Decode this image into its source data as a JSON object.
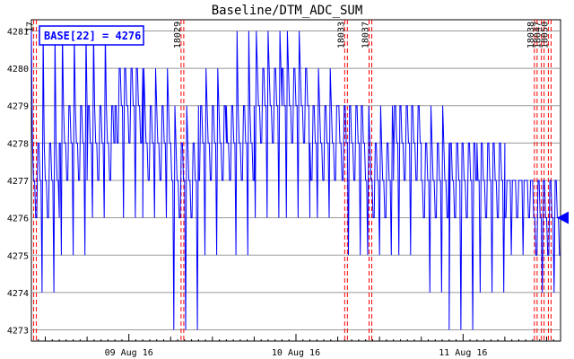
{
  "chart_data": {
    "type": "line",
    "title": "Baseline/DTM_ADC_SUM",
    "xlabel": "",
    "ylabel": "",
    "ylim": [
      4272.7,
      4281.3
    ],
    "y_ticks": [
      4273,
      4274,
      4275,
      4276,
      4277,
      4278,
      4279,
      4280,
      4281
    ],
    "x_range": [
      "2016-08-08 10:00",
      "2016-08-11 14:00"
    ],
    "x_date_labels": [
      {
        "label": "09 Aug 16",
        "x": "2016-08-09 00:00"
      },
      {
        "label": "10 Aug 16",
        "x": "2016-08-10 00:00"
      },
      {
        "label": "11 Aug 16",
        "x": "2016-08-11 00:00"
      }
    ],
    "grid": true,
    "legend": {
      "text": "BASE[22] = 4276",
      "placement": "top-left"
    },
    "current_value_marker": {
      "value": 4276
    },
    "run_markers": [
      {
        "label": "17",
        "x": "2016-08-08 10:20"
      },
      {
        "label": "18029",
        "x": "2016-08-09 07:30"
      },
      {
        "label": "18033",
        "x": "2016-08-10 07:00"
      },
      {
        "label": "18037",
        "x": "2016-08-10 10:30"
      },
      {
        "label": "18038",
        "x": "2016-08-11 10:15"
      },
      {
        "label": "18047",
        "x": "2016-08-11 11:15"
      },
      {
        "label": "18050",
        "x": "2016-08-11 12:15"
      }
    ],
    "series": [
      {
        "name": "",
        "color": "#0000ff",
        "x": [
          "2016-08-08 10:00",
          "2016-08-08 14:00",
          "2016-08-08 18:00",
          "2016-08-08 22:00",
          "2016-08-09 02:00",
          "2016-08-09 06:00",
          "2016-08-09 10:00",
          "2016-08-09 14:00",
          "2016-08-09 18:00",
          "2016-08-09 22:00",
          "2016-08-10 02:00",
          "2016-08-10 06:00",
          "2016-08-10 10:00",
          "2016-08-10 14:00",
          "2016-08-10 18:00",
          "2016-08-10 22:00",
          "2016-08-11 02:00",
          "2016-08-11 06:00",
          "2016-08-11 10:00",
          "2016-08-11 14:00"
        ],
        "values": [
          4277.0,
          4277.5,
          4278.0,
          4278.5,
          4278.0,
          4277.0,
          4277.5,
          4278.0,
          4278.5,
          4278.5,
          4278.0,
          4277.5,
          4277.0,
          4277.5,
          4277.0,
          4276.5,
          4276.5,
          4276.5,
          4276.0,
          4276.0
        ],
        "min": [
          4274,
          4275,
          4276,
          4276,
          4276,
          4273,
          4275,
          4275,
          4276,
          4276,
          4276,
          4275,
          4275,
          4275,
          4274,
          4273,
          4274,
          4275,
          4274,
          4274
        ],
        "max": [
          4281,
          4281,
          4281,
          4280,
          4280,
          4279,
          4280,
          4281,
          4281,
          4281,
          4280,
          4279,
          4279,
          4279,
          4279,
          4278,
          4278,
          4277,
          4277,
          4277
        ]
      }
    ]
  }
}
